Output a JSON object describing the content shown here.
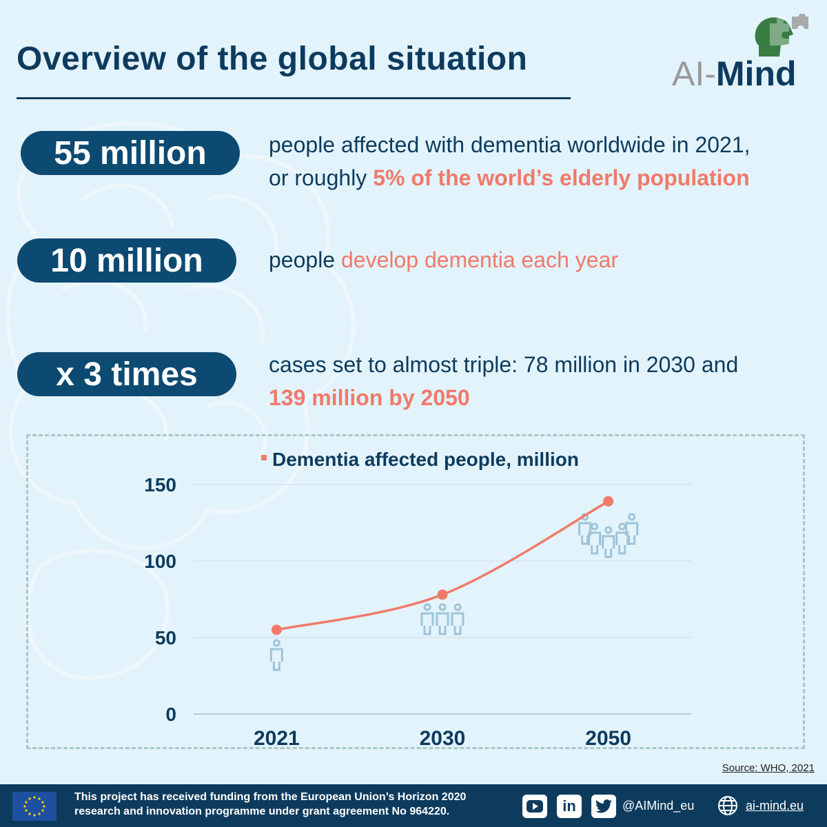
{
  "header": {
    "title": "Overview of the global situation",
    "logo_prefix": "AI-",
    "logo_suffix": "Mind"
  },
  "stats": [
    {
      "badge": "55 million",
      "line1": "people affected with dementia worldwide in 2021,",
      "line2_plain": "or roughly ",
      "line2_highlight": "5% of the world’s elderly population"
    },
    {
      "badge": "10 million",
      "plain": "people ",
      "highlight": "develop dementia each year"
    },
    {
      "badge": "x 3 times",
      "line1": "cases set to almost triple: 78 million in 2030 and",
      "line2_highlight": "139 million by 2050"
    }
  ],
  "chart_data": {
    "type": "line",
    "title": "",
    "categories": [
      "2021",
      "2030",
      "2050"
    ],
    "series": [
      {
        "name": "Dementia affected people, million",
        "values": [
          55,
          78,
          139
        ],
        "color": "#f07a6a"
      }
    ],
    "ylim": [
      0,
      150
    ],
    "yticks": [
      "0",
      "50",
      "100",
      "150"
    ],
    "grid": true,
    "legend_position": "top-center",
    "people_icon_color": "#9ec4d9"
  },
  "source": "Source: WHO, 2021",
  "footer": {
    "funding_line1": "This project has received funding from the European Union’s Horizon 2020",
    "funding_line2": "research and innovation programme under grant agreement No 964220.",
    "handle": "@AIMind_eu",
    "website": "ai-mind.eu",
    "icons": [
      "youtube-icon",
      "linkedin-icon",
      "twitter-icon",
      "globe-icon"
    ]
  },
  "colors": {
    "navy": "#0d3b5e",
    "accent": "#f07a6a",
    "background": "#e3f3fb",
    "logo_green": "#3a7d44"
  }
}
